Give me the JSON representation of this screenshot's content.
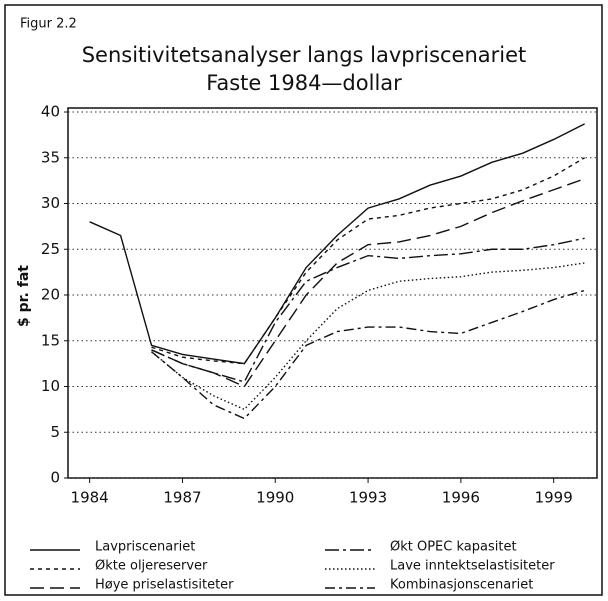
{
  "chart_data": {
    "type": "line",
    "figure_label": "Figur 2.2",
    "title": "Sensitivitetsanalyser langs lavpriscenariet",
    "subtitle": "Faste 1984—dollar",
    "y_label": "$ pr. fat",
    "x": [
      1984,
      1985,
      1986,
      1987,
      1988,
      1989,
      1990,
      1991,
      1992,
      1993,
      1994,
      1995,
      1996,
      1997,
      1998,
      1999,
      2000
    ],
    "xlim": [
      1983.3,
      2000.4
    ],
    "xticks": [
      1984,
      1987,
      1990,
      1993,
      1996,
      1999
    ],
    "ylim": [
      0,
      40
    ],
    "yticks": [
      0,
      5,
      10,
      15,
      20,
      25,
      30,
      35,
      40
    ],
    "grid": true,
    "legend": "bottom",
    "series": [
      {
        "name": "Lavpriscenariet",
        "color": "#111111",
        "dash": "none",
        "values": [
          28,
          26.5,
          14.5,
          13.5,
          13,
          12.5,
          17.5,
          23,
          26.5,
          29.5,
          30.5,
          32,
          33,
          34.5,
          35.5,
          37,
          38.7
        ]
      },
      {
        "name": "Økte oljereserver",
        "color": "#111111",
        "dash": "4 4",
        "values": [
          null,
          null,
          14.3,
          13.2,
          12.8,
          12.5,
          17.5,
          22.5,
          26,
          28.3,
          28.7,
          29.5,
          30,
          30.5,
          31.5,
          33,
          35
        ]
      },
      {
        "name": "Høye priselastisiteter",
        "color": "#111111",
        "dash": "14 6",
        "values": [
          null,
          null,
          14,
          12.5,
          11.5,
          10,
          15,
          20,
          23.5,
          25.5,
          25.8,
          26.5,
          27.5,
          29,
          30.3,
          31.5,
          32.7
        ]
      },
      {
        "name": "Økt OPEC kapasitet",
        "color": "#111111",
        "dash": "14 4 3 4",
        "values": [
          null,
          null,
          14,
          12.5,
          11.5,
          10.5,
          17,
          21.5,
          23,
          24.3,
          24,
          24.3,
          24.5,
          25,
          25,
          25.5,
          26.2
        ]
      },
      {
        "name": "Lave inntektselastisiteter",
        "color": "#111111",
        "dash": "1.5 2.5",
        "values": [
          null,
          null,
          13.8,
          11,
          9,
          7.5,
          11,
          15,
          18.5,
          20.5,
          21.5,
          21.8,
          22,
          22.5,
          22.7,
          23,
          23.5
        ]
      },
      {
        "name": "Kombinasjonscenariet",
        "color": "#111111",
        "dash": "10 4 3 4",
        "values": [
          null,
          null,
          13.8,
          11,
          8,
          6.5,
          10,
          14.5,
          16,
          16.5,
          16.5,
          16,
          15.8,
          17,
          18.2,
          19.5,
          20.5
        ]
      }
    ]
  }
}
